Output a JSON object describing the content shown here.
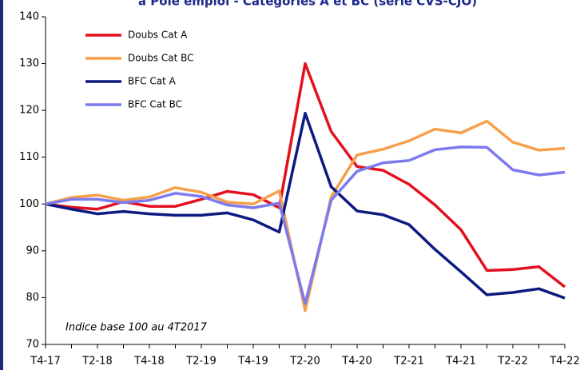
{
  "chart_data": {
    "type": "line",
    "title": "à Pôle emploi - Catégories A et BC (série CVS-CJO)",
    "annotation": "Indice base 100 au 4T2017",
    "categories": [
      "T4-17",
      null,
      "T2-18",
      null,
      "T4-18",
      null,
      "T2-19",
      null,
      "T4-19",
      null,
      "T2-20",
      null,
      "T4-20",
      null,
      "T2-21",
      null,
      "T4-21",
      null,
      "T2-22",
      null,
      "T4-22"
    ],
    "series": [
      {
        "name": "Doubs  Cat A",
        "color": "#e3101e",
        "values": [
          100,
          99.3,
          98.9,
          100.5,
          99.5,
          99.5,
          101,
          102.7,
          102,
          99.2,
          130,
          115.5,
          108,
          107.2,
          104.2,
          99.8,
          94.5,
          85.8,
          86,
          86.6,
          82.3
        ]
      },
      {
        "name": "Doubs  Cat BC",
        "color": "#f7a04b",
        "values": [
          100,
          101.4,
          101.9,
          100.8,
          101.5,
          103.5,
          102.5,
          100.4,
          100,
          102.8,
          77.2,
          101.5,
          110.5,
          111.7,
          113.5,
          116,
          115.2,
          117.7,
          113.2,
          111.5,
          111.9
        ]
      },
      {
        "name": "BFC Cat A",
        "color": "#0d1a80",
        "values": [
          100,
          98.9,
          97.9,
          98.4,
          97.9,
          97.6,
          97.6,
          98.1,
          96.6,
          94,
          119.4,
          103.7,
          98.5,
          97.7,
          95.6,
          90.3,
          85.5,
          80.6,
          81.1,
          81.9,
          79.9
        ]
      },
      {
        "name": "BFC Cat BC",
        "color": "#7b7bef",
        "values": [
          100,
          101,
          101,
          100.3,
          100.8,
          102.3,
          101.6,
          99.8,
          99.2,
          100.2,
          78.7,
          100.8,
          107,
          108.8,
          109.3,
          111.6,
          112.2,
          112.1,
          107.3,
          106.2,
          106.8
        ]
      }
    ],
    "ylim": [
      70,
      140
    ],
    "yticks": [
      70,
      80,
      90,
      100,
      110,
      120,
      130,
      140
    ],
    "grid": false
  }
}
